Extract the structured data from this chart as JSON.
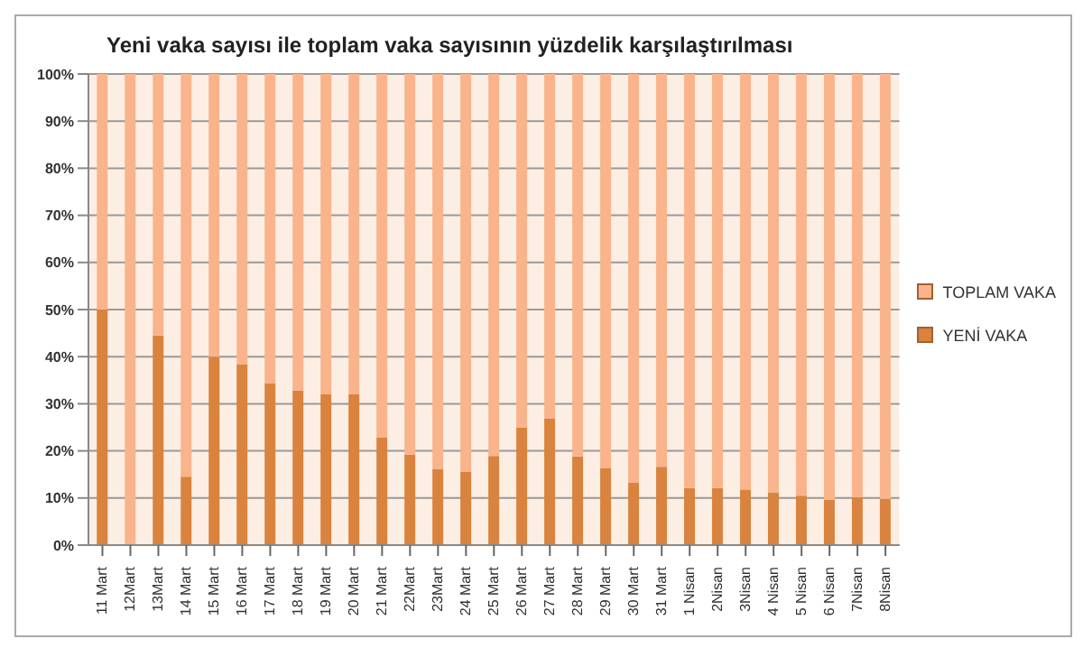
{
  "chart_data": {
    "type": "bar",
    "title": "Yeni vaka sayısı ile toplam vaka sayısının yüzdelik karşılaştırılması",
    "stacked": true,
    "categories": [
      "11 Mart",
      "12Mart",
      "13Mart",
      "14 Mart",
      "15 Mart",
      "16 Mart",
      "17 Mart",
      "18 Mart",
      "19 Mart",
      "20 Mart",
      "21 Mart",
      "22Mart",
      "23Mart",
      "24 Mart",
      "25 Mart",
      "26 Mart",
      "27 Mart",
      "28 Mart",
      "29 Mart",
      "30 Mart",
      "31 Mart",
      "1 Nisan",
      "2Nisan",
      "3Nisan",
      "4 Nisan",
      "5 Nisan",
      "6 Nisan",
      "7Nisan",
      "8Nisan"
    ],
    "series": [
      {
        "name": "YENİ VAKA",
        "color": "#d9833e",
        "values": [
          50,
          0,
          44.5,
          14.5,
          40,
          38.3,
          34.4,
          32.8,
          32,
          32,
          22.8,
          19.2,
          16.2,
          15.5,
          18.9,
          25,
          26.8,
          18.8,
          16.4,
          13.2,
          16.6,
          12.1,
          12.1,
          11.8,
          11.2,
          10.5,
          9.6,
          10.2,
          9.8
        ]
      },
      {
        "name": "TOPLAM VAKA",
        "color": "#f9b48c",
        "values": [
          50,
          100,
          55.5,
          85.5,
          60,
          61.7,
          65.6,
          67.2,
          68,
          68,
          77.2,
          80.8,
          83.8,
          84.5,
          81.1,
          75,
          73.2,
          81.2,
          83.6,
          86.8,
          83.4,
          87.9,
          87.9,
          88.2,
          88.8,
          89.5,
          90.4,
          89.8,
          90.2
        ]
      }
    ],
    "ylim": [
      0,
      100
    ],
    "yticks": [
      {
        "value": 0,
        "label": "0%"
      },
      {
        "value": 10,
        "label": "10%"
      },
      {
        "value": 20,
        "label": "20%"
      },
      {
        "value": 30,
        "label": "30%"
      },
      {
        "value": 40,
        "label": "40%"
      },
      {
        "value": 50,
        "label": "50%"
      },
      {
        "value": 60,
        "label": "60%"
      },
      {
        "value": 70,
        "label": "70%"
      },
      {
        "value": 80,
        "label": "80%"
      },
      {
        "value": 90,
        "label": "90%"
      },
      {
        "value": 100,
        "label": "100%"
      }
    ],
    "grid": "y",
    "legend": "right"
  }
}
